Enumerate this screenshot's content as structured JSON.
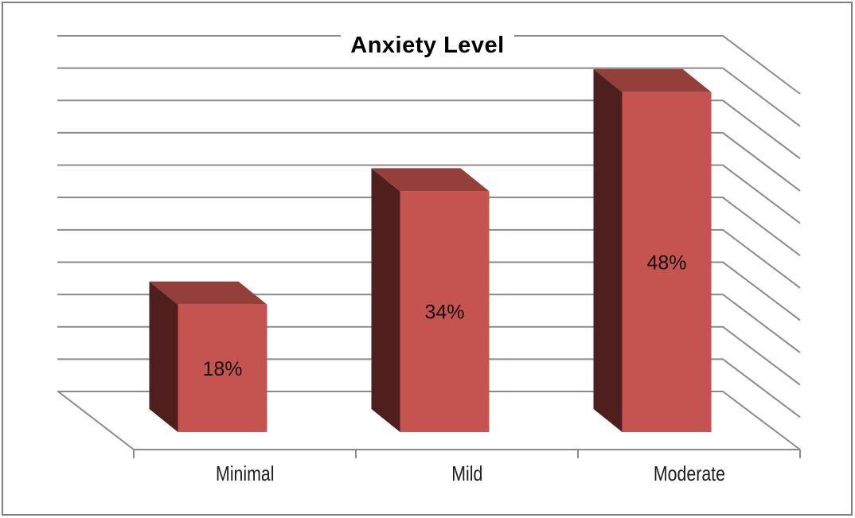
{
  "title": "Anxiety Level",
  "chart_data": {
    "type": "bar",
    "variant": "3d-column",
    "title": "Anxiety Level",
    "categories": [
      "Minimal",
      "Mild",
      "Moderate"
    ],
    "values": [
      18,
      34,
      48
    ],
    "data_labels": [
      "18%",
      "34%",
      "48%"
    ],
    "series": [
      {
        "name": "Anxiety Level",
        "values": [
          18,
          34,
          48
        ]
      }
    ],
    "xlabel": "",
    "ylabel": "",
    "ylim": [
      0,
      55
    ],
    "gridline_step_percent": 5,
    "gridline_count": 12,
    "value_axis_tick_labels_visible": false,
    "grid": "horizontal",
    "legend": "none",
    "colors": {
      "bar_front": "#c5534f",
      "bar_top": "#953f3b",
      "bar_side": "#4e1f1c",
      "gridline": "#8a8a8a",
      "axis_line": "#8a8a8a",
      "data_label": "#111111",
      "category_label": "#1c1c1c",
      "title": "#000000",
      "frame_border": "#7f7f7f",
      "background": "#ffffff"
    }
  }
}
